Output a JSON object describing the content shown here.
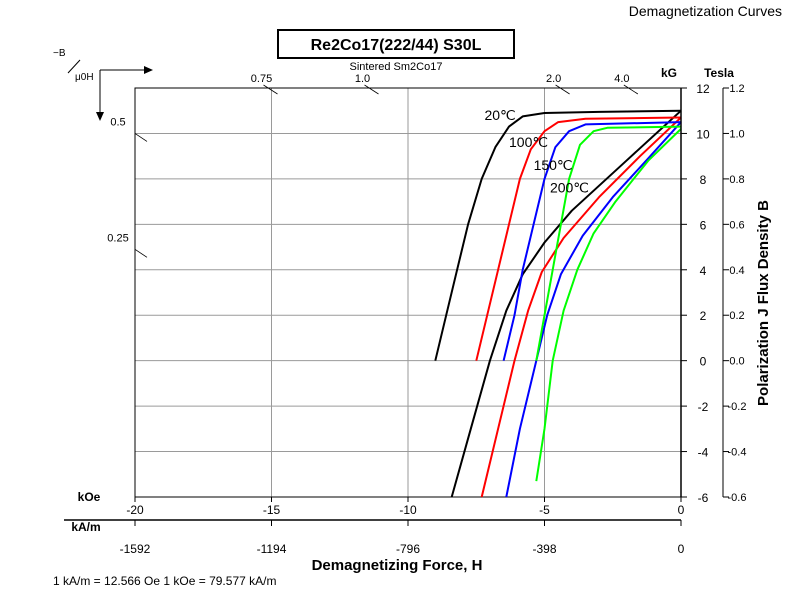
{
  "header": {
    "corner_title": "Demagnetization Curves",
    "boxed_title": "Re2Co17(222/44) S30L",
    "subtitle": "Sintered Sm2Co17"
  },
  "axes": {
    "y_left_symbol": "−B",
    "x_left_symbol": "μ0H",
    "kOe_label": "kOe",
    "kAm_label": "kA/m",
    "kG_label": "kG",
    "tesla_label": "Tesla",
    "x_title": "Demagnetizing Force, H",
    "y_right_title": "Polarization J Flux Density B"
  },
  "footnote": "1 kA/m = 12.566 Oe 1 kOe = 79.577 kA/m",
  "chart_data": {
    "type": "line",
    "title": "Re2Co17(222/44) S30L",
    "subtitle": "Sintered Sm2Co17",
    "xlabel": "Demagnetizing Force, H",
    "ylabel": "Polarization J Flux Density B",
    "xlim": [
      -20,
      0
    ],
    "ylim": [
      -6,
      12
    ],
    "grid": true,
    "x_ticks_kOe": [
      "-20",
      "-15",
      "-10",
      "-5",
      "0"
    ],
    "x_ticks_kAm": [
      "-1592",
      "-1194",
      "-796",
      "-398",
      "0"
    ],
    "y_ticks_kG": [
      "12",
      "10",
      "8",
      "6",
      "4",
      "2",
      "0",
      "-2",
      "-4",
      "-6"
    ],
    "y_ticks_tesla": [
      "1.2",
      "1.0",
      "0.8",
      "0.6",
      "0.4",
      "0.2",
      "0.0",
      "-0.2",
      "-0.4",
      "-0.6"
    ],
    "permeance_labels": [
      "0.75",
      "1.0",
      "2.0",
      "4.0",
      "0.5",
      "0.25"
    ],
    "series": [
      {
        "name": "20℃",
        "color": "#000000",
        "J": [
          [
            -9.0,
            0
          ],
          [
            -8.6,
            2
          ],
          [
            -8.2,
            4
          ],
          [
            -7.8,
            6
          ],
          [
            -7.3,
            8
          ],
          [
            -6.8,
            9.4
          ],
          [
            -6.3,
            10.3
          ],
          [
            -5.8,
            10.75
          ],
          [
            -5.0,
            10.9
          ],
          [
            -3.0,
            10.95
          ],
          [
            0,
            11.0
          ]
        ],
        "B": [
          [
            -8.4,
            -6
          ],
          [
            -7.7,
            -3
          ],
          [
            -7.0,
            0
          ],
          [
            -6.4,
            2.2
          ],
          [
            -5.8,
            3.8
          ],
          [
            -5.0,
            5.2
          ],
          [
            -4.0,
            6.6
          ],
          [
            -2.0,
            8.8
          ],
          [
            0,
            11.0
          ]
        ]
      },
      {
        "name": "100℃",
        "color": "#ff0000",
        "J": [
          [
            -7.5,
            0
          ],
          [
            -7.1,
            2
          ],
          [
            -6.7,
            4
          ],
          [
            -6.3,
            6
          ],
          [
            -5.9,
            8
          ],
          [
            -5.5,
            9.3
          ],
          [
            -5.0,
            10.1
          ],
          [
            -4.5,
            10.5
          ],
          [
            -3.5,
            10.65
          ],
          [
            0,
            10.7
          ]
        ],
        "B": [
          [
            -7.3,
            -6
          ],
          [
            -6.7,
            -3
          ],
          [
            -6.1,
            0
          ],
          [
            -5.6,
            2.2
          ],
          [
            -5.1,
            3.9
          ],
          [
            -4.3,
            5.4
          ],
          [
            -3.0,
            7.2
          ],
          [
            -1.5,
            9.0
          ],
          [
            0,
            10.7
          ]
        ]
      },
      {
        "name": "150℃",
        "color": "#0000ff",
        "J": [
          [
            -6.5,
            0
          ],
          [
            -6.1,
            2
          ],
          [
            -5.8,
            4
          ],
          [
            -5.4,
            6
          ],
          [
            -5.0,
            8
          ],
          [
            -4.6,
            9.4
          ],
          [
            -4.1,
            10.1
          ],
          [
            -3.5,
            10.4
          ],
          [
            0,
            10.5
          ]
        ],
        "B": [
          [
            -6.4,
            -6
          ],
          [
            -5.9,
            -3
          ],
          [
            -5.3,
            0
          ],
          [
            -4.9,
            2.0
          ],
          [
            -4.4,
            3.8
          ],
          [
            -3.6,
            5.5
          ],
          [
            -2.5,
            7.2
          ],
          [
            -1.2,
            8.9
          ],
          [
            0,
            10.5
          ]
        ]
      },
      {
        "name": "200℃",
        "color": "#00ff00",
        "J": [
          [
            -5.3,
            0
          ],
          [
            -5.0,
            2
          ],
          [
            -4.7,
            4
          ],
          [
            -4.4,
            6
          ],
          [
            -4.1,
            8
          ],
          [
            -3.7,
            9.5
          ],
          [
            -3.2,
            10.1
          ],
          [
            -2.7,
            10.25
          ],
          [
            0,
            10.3
          ]
        ],
        "B": [
          [
            -5.3,
            -5.3
          ],
          [
            -5.0,
            -3
          ],
          [
            -4.7,
            0
          ],
          [
            -4.3,
            2.2
          ],
          [
            -3.8,
            4.0
          ],
          [
            -3.2,
            5.6
          ],
          [
            -2.4,
            7.0
          ],
          [
            -1.2,
            8.8
          ],
          [
            0,
            10.2
          ]
        ]
      }
    ],
    "curve_labels": [
      "20℃",
      "100℃",
      "150℃",
      "200℃"
    ]
  }
}
